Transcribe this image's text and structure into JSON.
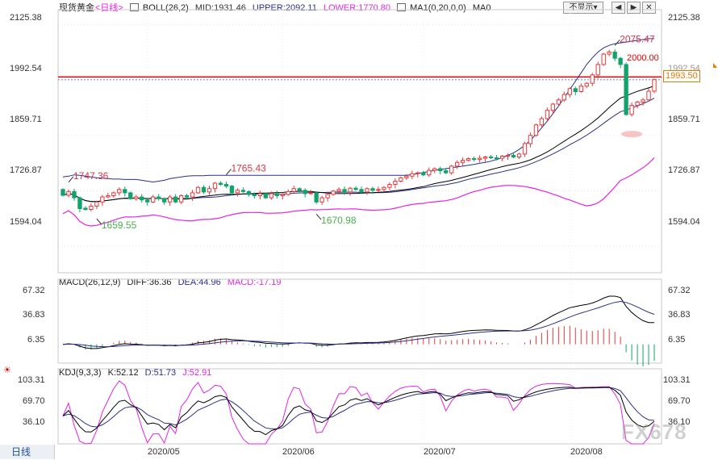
{
  "chart_data": {
    "type": "candlestick",
    "instrument": "现货黄金",
    "period": "日线",
    "x_labels": [
      "2020/05",
      "2020/06",
      "2020/07",
      "2020/08"
    ],
    "price_panel": {
      "legend": {
        "title": "现货黄金",
        "period_tag": "<日线>",
        "boll": "BOLL(26,2)",
        "mid": "MID:1931.46",
        "upper": "UPPER:2092.11",
        "lower": "LOWER:1770.80",
        "ma": "MA1(0,20,0,0)",
        "ma0": "MA0"
      },
      "y_ticks": [
        "2125.38",
        "1992.54",
        "1859.71",
        "1726.87",
        "1594.04"
      ],
      "y_range": [
        1530,
        2150
      ],
      "resistance_level": 2000.0,
      "resistance_label": "2000.00",
      "current_price": 1993.5,
      "current_price_label": "1993.50",
      "annotations": [
        {
          "text": "1747.36",
          "index": 1,
          "value": 1747.36
        },
        {
          "text": "1659.55",
          "index": 6,
          "value": 1659.55
        },
        {
          "text": "1765.43",
          "index": 29,
          "value": 1765.43
        },
        {
          "text": "1670.98",
          "index": 45,
          "value": 1670.98
        },
        {
          "text": "2075.47",
          "index": 98,
          "value": 2075.47
        }
      ],
      "opens": [
        1730,
        1716,
        1725,
        1710,
        1685,
        1682,
        1690,
        1700,
        1712,
        1715,
        1722,
        1730,
        1722,
        1708,
        1712,
        1705,
        1700,
        1712,
        1708,
        1700,
        1712,
        1700,
        1715,
        1712,
        1722,
        1735,
        1724,
        1732,
        1745,
        1742,
        1738,
        1722,
        1728,
        1725,
        1718,
        1715,
        1720,
        1710,
        1720,
        1715,
        1718,
        1725,
        1732,
        1728,
        1720,
        1722,
        1700,
        1710,
        1718,
        1726,
        1730,
        1724,
        1733,
        1730,
        1724,
        1732,
        1728,
        1730,
        1735,
        1742,
        1750,
        1758,
        1762,
        1768,
        1770,
        1765,
        1776,
        1780,
        1775,
        1770,
        1786,
        1795,
        1800,
        1804,
        1802,
        1805,
        1808,
        1806,
        1805,
        1810,
        1812,
        1808,
        1815,
        1840,
        1860,
        1885,
        1900,
        1920,
        1935,
        1945,
        1958,
        1972,
        1965,
        1978,
        1985,
        2005,
        2030,
        2055,
        2060,
        2045,
        2030,
        1910,
        1932,
        1940,
        1945,
        1966
      ],
      "closes": [
        1716,
        1725,
        1710,
        1684,
        1682,
        1690,
        1700,
        1712,
        1715,
        1722,
        1730,
        1722,
        1708,
        1712,
        1705,
        1700,
        1712,
        1708,
        1700,
        1712,
        1700,
        1715,
        1712,
        1722,
        1735,
        1724,
        1732,
        1745,
        1742,
        1738,
        1722,
        1728,
        1725,
        1718,
        1715,
        1720,
        1710,
        1720,
        1715,
        1718,
        1725,
        1732,
        1728,
        1720,
        1722,
        1700,
        1710,
        1718,
        1726,
        1730,
        1724,
        1733,
        1730,
        1724,
        1732,
        1728,
        1730,
        1735,
        1742,
        1750,
        1758,
        1762,
        1768,
        1770,
        1765,
        1776,
        1780,
        1775,
        1770,
        1786,
        1795,
        1800,
        1804,
        1802,
        1805,
        1808,
        1806,
        1805,
        1810,
        1812,
        1808,
        1815,
        1840,
        1860,
        1885,
        1900,
        1920,
        1935,
        1945,
        1958,
        1972,
        1965,
        1978,
        1985,
        2005,
        2030,
        2055,
        2060,
        2045,
        2030,
        1910,
        1932,
        1940,
        1945,
        1966,
        1993.5
      ],
      "upper_band": [
        1760,
        1762,
        1765,
        1764,
        1762,
        1760,
        1758,
        1757,
        1756,
        1755,
        1755,
        1754,
        1754,
        1754,
        1752,
        1750,
        1748,
        1750,
        1752,
        1756,
        1758,
        1760,
        1762,
        1763,
        1763,
        1763,
        1764,
        1764,
        1764,
        1764,
        1764,
        1764,
        1764,
        1764,
        1764,
        1764,
        1764,
        1764,
        1764,
        1764,
        1764,
        1764,
        1764,
        1764,
        1764,
        1764,
        1764,
        1764,
        1764,
        1764,
        1764,
        1764,
        1764,
        1764,
        1764,
        1764,
        1764,
        1764,
        1764,
        1764,
        1764,
        1764,
        1766,
        1768,
        1771,
        1773,
        1776,
        1778,
        1780,
        1782,
        1784,
        1786,
        1788,
        1790,
        1793,
        1795,
        1798,
        1802,
        1806,
        1812,
        1818,
        1826,
        1836,
        1848,
        1862,
        1878,
        1894,
        1912,
        1930,
        1950,
        1970,
        1990,
        2010,
        2030,
        2046,
        2060,
        2070,
        2076,
        2080,
        2082,
        2084,
        2086,
        2088,
        2090,
        2092,
        2092
      ]
    },
    "macd_panel": {
      "legend": {
        "name": "MACD(26,12,9)",
        "diff": "DIFF:36.36",
        "dea": "DEA:44.96",
        "macd": "MACD:-17.19"
      },
      "y_ticks": [
        "67.32",
        "36.83",
        "6.35"
      ],
      "y_range": [
        -25,
        80
      ]
    },
    "kdj_panel": {
      "legend": {
        "name": "KDJ(9,3,3)",
        "k": "K:52.12",
        "d": "D:51.73",
        "j": "J:52.91"
      },
      "y_ticks": [
        "103.31",
        "69.70",
        "36.10"
      ],
      "y_range": [
        5,
        118
      ]
    }
  },
  "toolbar": {
    "dropdown_label": "不显示",
    "dropdown_arrow": "▾",
    "nav_left": "◀",
    "nav_right": "▶",
    "close": "✕"
  },
  "bottom_tab": "日线",
  "watermark": "FX678",
  "colors": {
    "up": "#e23b3b",
    "down": "#11a36a",
    "boll": "#2b2f8a",
    "lower": "#e524e5",
    "ma": "#000000",
    "resistance": "#e40000"
  }
}
